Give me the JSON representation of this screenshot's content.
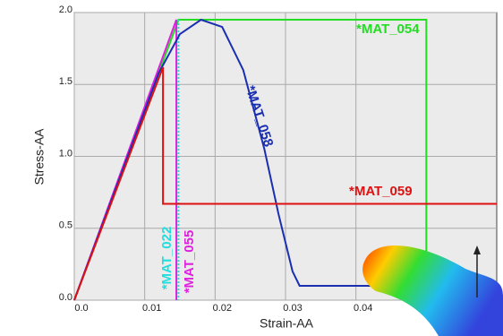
{
  "chart_data": {
    "type": "line",
    "x_label": "Strain-AA",
    "y_label": "Stress-AA",
    "xlim": [
      0,
      0.06
    ],
    "ylim": [
      0,
      2
    ],
    "xticks": [
      {
        "value": 0,
        "label": "0.0"
      },
      0.01,
      0.02,
      0.03,
      0.04
    ],
    "yticks": [
      {
        "value": 0,
        "label": "0.0"
      },
      0.5,
      {
        "value": 1,
        "label": "1.0"
      },
      1.5,
      {
        "value": 2,
        "label": "2.0"
      }
    ],
    "grid": true,
    "series": [
      {
        "name": "*MAT_054",
        "color": "#22dd22",
        "x": [
          0,
          0.0148,
          0.05,
          0.05
        ],
        "values": [
          0,
          1.95,
          1.95,
          0
        ]
      },
      {
        "name": "*MAT_055",
        "color": "#dd22dd",
        "x": [
          0,
          0.0145,
          0.0145
        ],
        "values": [
          0,
          1.95,
          0
        ]
      },
      {
        "name": "*MAT_022",
        "color": "#22dddd",
        "x": [
          0.0148,
          0.0148
        ],
        "values": [
          1.95,
          0
        ],
        "dashed": true
      },
      {
        "name": "*MAT_058",
        "color": "#1a2fb0",
        "x": [
          0,
          0.012,
          0.015,
          0.018,
          0.021,
          0.024,
          0.027,
          0.029,
          0.031,
          0.032,
          0.05
        ],
        "values": [
          0,
          1.58,
          1.85,
          1.95,
          1.9,
          1.6,
          1.05,
          0.6,
          0.2,
          0.1,
          0.1
        ]
      },
      {
        "name": "*MAT_059",
        "color": "#dd1111",
        "x": [
          0,
          0.0126,
          0.0126,
          0.06
        ],
        "values": [
          0,
          1.62,
          0.67,
          0.67
        ]
      }
    ]
  }
}
